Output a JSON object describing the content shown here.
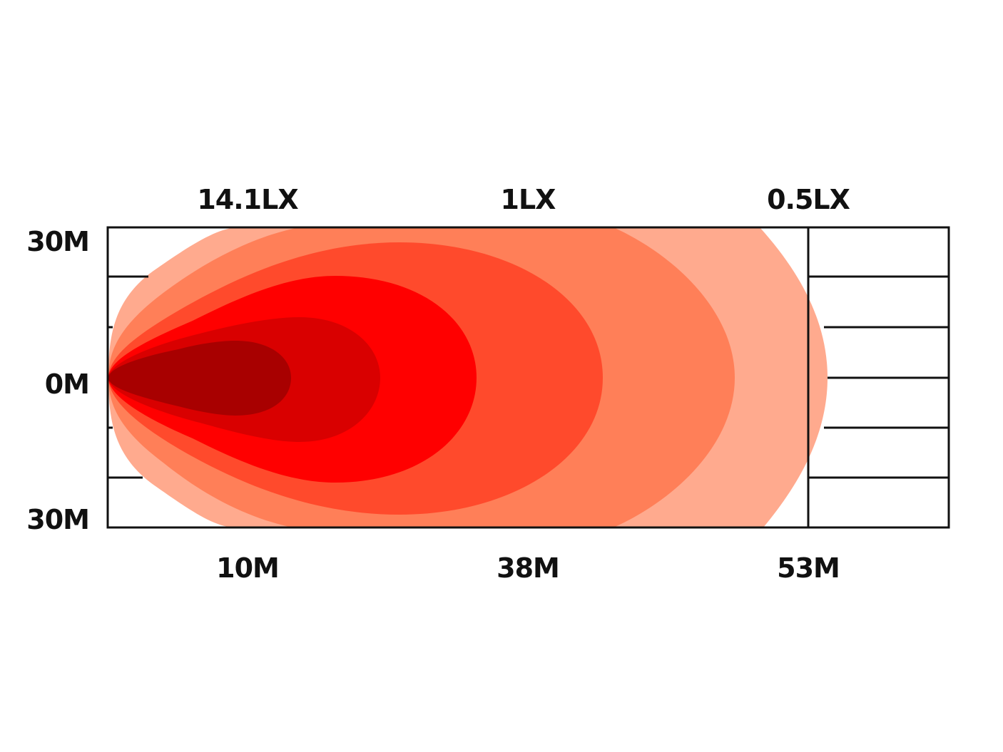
{
  "diagram": {
    "lux_labels": [
      "14.1LX",
      "1LX",
      "0.5LX"
    ],
    "distance_labels": [
      "10M",
      "38M",
      "53M"
    ],
    "width_labels": {
      "top": "30M",
      "middle": "0M",
      "bottom": "30M"
    },
    "colors": {
      "background": "#ffffff",
      "grid": "#111111",
      "zones": [
        "#FFAA8E",
        "#FF7F58",
        "#FF4A2C",
        "#FF0000",
        "#D90000",
        "#A80000"
      ]
    }
  }
}
